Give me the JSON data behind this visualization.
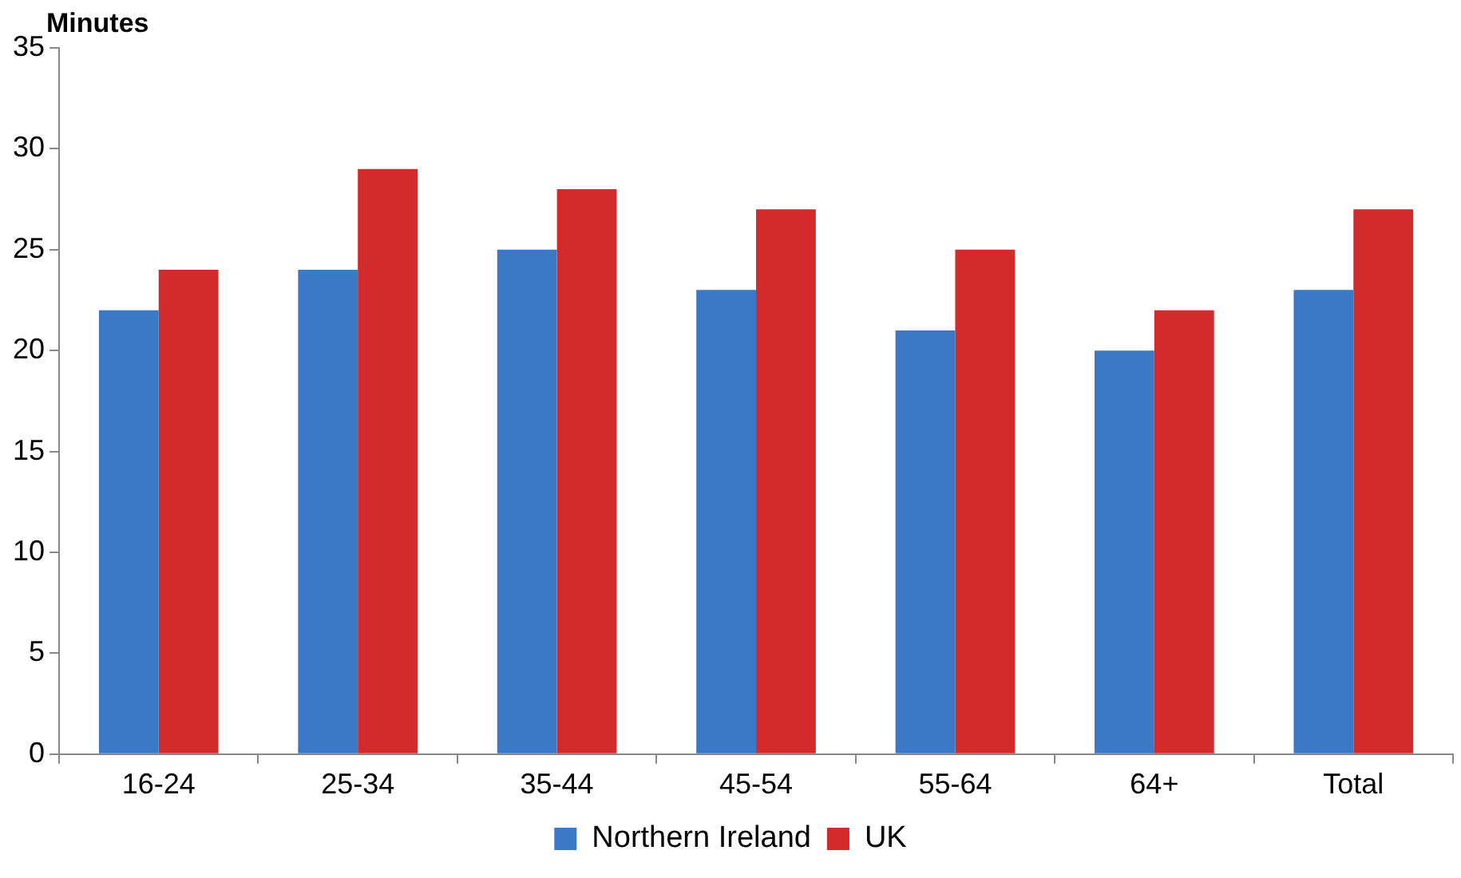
{
  "chart_data": {
    "type": "bar",
    "ylabel": "Minutes",
    "categories": [
      "16-24",
      "25-34",
      "35-44",
      "45-54",
      "55-64",
      "64+",
      "Total"
    ],
    "series": [
      {
        "name": "Northern Ireland",
        "color": "#3b78c6",
        "values": [
          22,
          24,
          25,
          23,
          21,
          20,
          23
        ]
      },
      {
        "name": "UK",
        "color": "#d32b2b",
        "values": [
          24,
          29,
          28,
          27,
          25,
          22,
          27
        ]
      }
    ],
    "ylim": [
      0,
      35
    ],
    "yticks": [
      0,
      5,
      10,
      15,
      20,
      25,
      30,
      35
    ],
    "grid": false,
    "legend": "bottom"
  }
}
